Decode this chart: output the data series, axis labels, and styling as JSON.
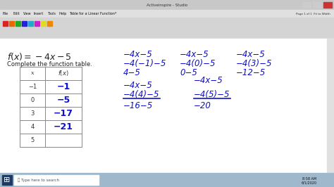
{
  "bg_color": "#f0f0f0",
  "white": "#ffffff",
  "titlebar_color": "#c8c8c8",
  "toolbar_color": "#d8d8d8",
  "menubar_color": "#e0e0e0",
  "taskbar_color": "#a0b4c8",
  "content_bg": "#ffffff",
  "blue": "#1010cc",
  "black": "#222222",
  "gray": "#888888",
  "formula": "f(x) = −4x − 5",
  "subtitle": "Complete the function table.",
  "table_x": [
    "−1",
    "0",
    "3",
    "4",
    "5"
  ],
  "table_fx": [
    "−1",
    "−5",
    "−17",
    "−21",
    ""
  ],
  "work": {
    "top_col1_lines": [
      "−4x−5",
      "−4(−1)−5",
      "4−5"
    ],
    "top_col2_lines": [
      "−4x−5",
      "−4(0)−5",
      "0−5"
    ],
    "top_col3_lines": [
      "−4x−5",
      "−4(3)−5",
      "−12−5"
    ],
    "bot_col1_lines": [
      "−4x−5",
      "−4(4)−5",
      "−16−5"
    ],
    "bot_col2_lines": [
      "−4x−5",
      "−4(5)−5",
      "−20"
    ]
  },
  "toolbar_icon_colors": [
    "#dd2222",
    "#ee6600",
    "#22aa22",
    "#2222dd",
    "#22aacc",
    "#cc22cc",
    "#dddd22",
    "#ee8800"
  ]
}
